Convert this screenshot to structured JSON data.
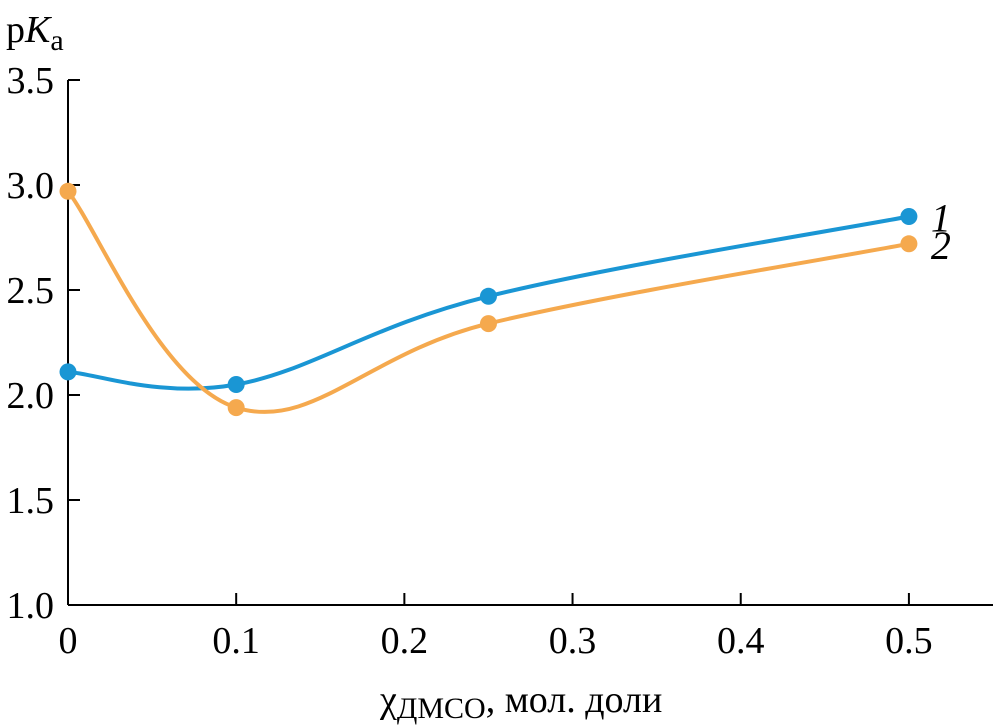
{
  "chart_data": {
    "type": "line",
    "ylabel": {
      "base": "p",
      "italic": "K",
      "subscript": "a"
    },
    "xlabel": {
      "symbol": "χ",
      "subscript": "ДМСО",
      "rest": ", мол. доли"
    },
    "xlim": [
      0,
      0.55
    ],
    "ylim": [
      1.0,
      3.5
    ],
    "xticks": [
      0,
      0.1,
      0.2,
      0.3,
      0.4,
      0.5
    ],
    "xtick_labels": [
      "0",
      "0.1",
      "0.2",
      "0.3",
      "0.4",
      "0.5"
    ],
    "yticks": [
      1.0,
      1.5,
      2.0,
      2.5,
      3.0,
      3.5
    ],
    "ytick_labels": [
      "1.0",
      "1.5",
      "2.0",
      "2.5",
      "3.0",
      "3.5"
    ],
    "grid": false,
    "smooth": true,
    "series": [
      {
        "label": "1",
        "color": "#1a96d4",
        "x": [
          0,
          0.1,
          0.25,
          0.5
        ],
        "y": [
          2.11,
          2.05,
          2.47,
          2.85
        ]
      },
      {
        "label": "2",
        "color": "#f5a94e",
        "x": [
          0,
          0.1,
          0.25,
          0.5
        ],
        "y": [
          2.97,
          1.94,
          2.34,
          2.72
        ]
      }
    ]
  }
}
